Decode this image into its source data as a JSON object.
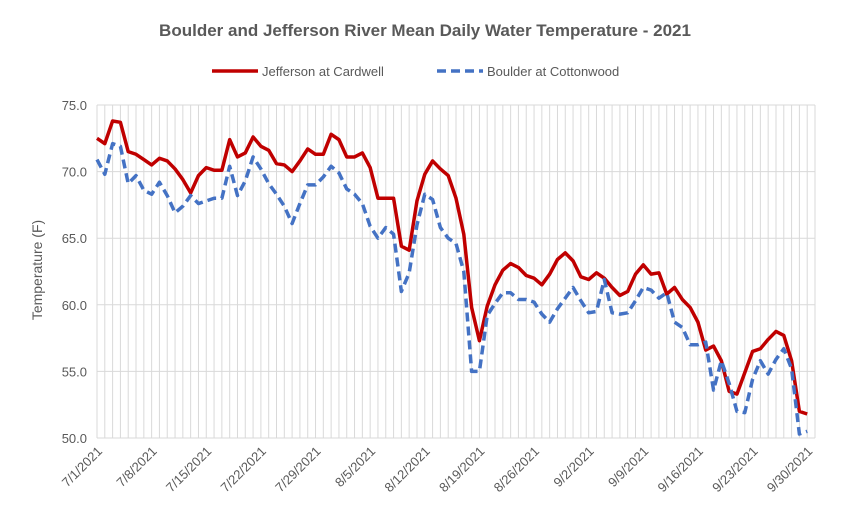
{
  "chart_data": {
    "type": "line",
    "title": "Boulder and Jefferson River Mean Daily Water Temperature - 2021",
    "ylabel": "Temperature (F)",
    "xlabel": "",
    "ylim": [
      50,
      75
    ],
    "yticks": [
      "50.0",
      "55.0",
      "60.0",
      "65.0",
      "70.0",
      "75.0"
    ],
    "x_ticks": [
      "7/1/2021",
      "7/8/2021",
      "7/15/2021",
      "7/22/2021",
      "7/29/2021",
      "8/5/2021",
      "8/12/2021",
      "8/19/2021",
      "8/26/2021",
      "9/2/2021",
      "9/9/2021",
      "9/16/2021",
      "9/23/2021",
      "9/30/2021"
    ],
    "x_start": "7/1/2021",
    "x_end": "10/1/2021",
    "grid": true,
    "legend_position": "top",
    "series": [
      {
        "name": "Jefferson at Cardwell",
        "color": "#c00000",
        "style": "solid",
        "values": [
          72.5,
          72.1,
          73.8,
          73.7,
          71.5,
          71.3,
          70.9,
          70.5,
          71.0,
          70.8,
          70.2,
          69.4,
          68.4,
          69.7,
          70.3,
          70.1,
          70.1,
          72.4,
          71.1,
          71.4,
          72.6,
          71.9,
          71.6,
          70.6,
          70.5,
          70.0,
          70.8,
          71.7,
          71.3,
          71.3,
          72.8,
          72.4,
          71.1,
          71.1,
          71.4,
          70.3,
          68.0,
          68.0,
          68.0,
          64.4,
          64.1,
          67.8,
          69.8,
          70.8,
          70.2,
          69.7,
          68.0,
          65.3,
          59.8,
          57.3,
          59.9,
          61.5,
          62.6,
          63.1,
          62.8,
          62.2,
          62.0,
          61.5,
          62.3,
          63.4,
          63.9,
          63.3,
          62.1,
          61.9,
          62.4,
          62.0,
          61.3,
          60.7,
          61.0,
          62.3,
          63.0,
          62.3,
          62.4,
          60.8,
          61.3,
          60.4,
          59.8,
          58.7,
          56.6,
          56.9,
          55.8,
          53.5,
          53.3,
          54.9,
          56.5,
          56.7,
          57.4,
          58.0,
          57.7,
          55.8,
          52.0,
          51.8
        ]
      },
      {
        "name": "Boulder at Cottonwood",
        "color": "#4472c4",
        "style": "dashed",
        "values": [
          70.9,
          69.8,
          72.1,
          71.9,
          69.1,
          69.7,
          68.6,
          68.3,
          69.2,
          68.2,
          66.9,
          67.4,
          68.2,
          67.6,
          67.8,
          68.0,
          68.0,
          70.4,
          68.2,
          69.3,
          71.1,
          70.2,
          69.1,
          68.3,
          67.4,
          66.1,
          67.6,
          69.0,
          69.0,
          69.6,
          70.4,
          69.9,
          68.7,
          68.3,
          67.6,
          65.9,
          65.0,
          65.8,
          65.3,
          61.0,
          62.4,
          66.0,
          68.3,
          67.9,
          65.8,
          65.0,
          64.6,
          62.5,
          55.0,
          55.0,
          59.2,
          60.1,
          60.9,
          60.9,
          60.4,
          60.4,
          60.2,
          59.3,
          58.7,
          59.7,
          60.5,
          61.3,
          60.3,
          59.4,
          59.5,
          61.9,
          59.4,
          59.3,
          59.4,
          60.3,
          61.3,
          61.1,
          60.5,
          60.9,
          58.7,
          58.3,
          57.0,
          57.0,
          57.2,
          53.6,
          55.8,
          54.1,
          52.0,
          51.9,
          54.4,
          55.8,
          54.8,
          55.9,
          56.7,
          55.2,
          50.3,
          50.5
        ]
      }
    ]
  }
}
